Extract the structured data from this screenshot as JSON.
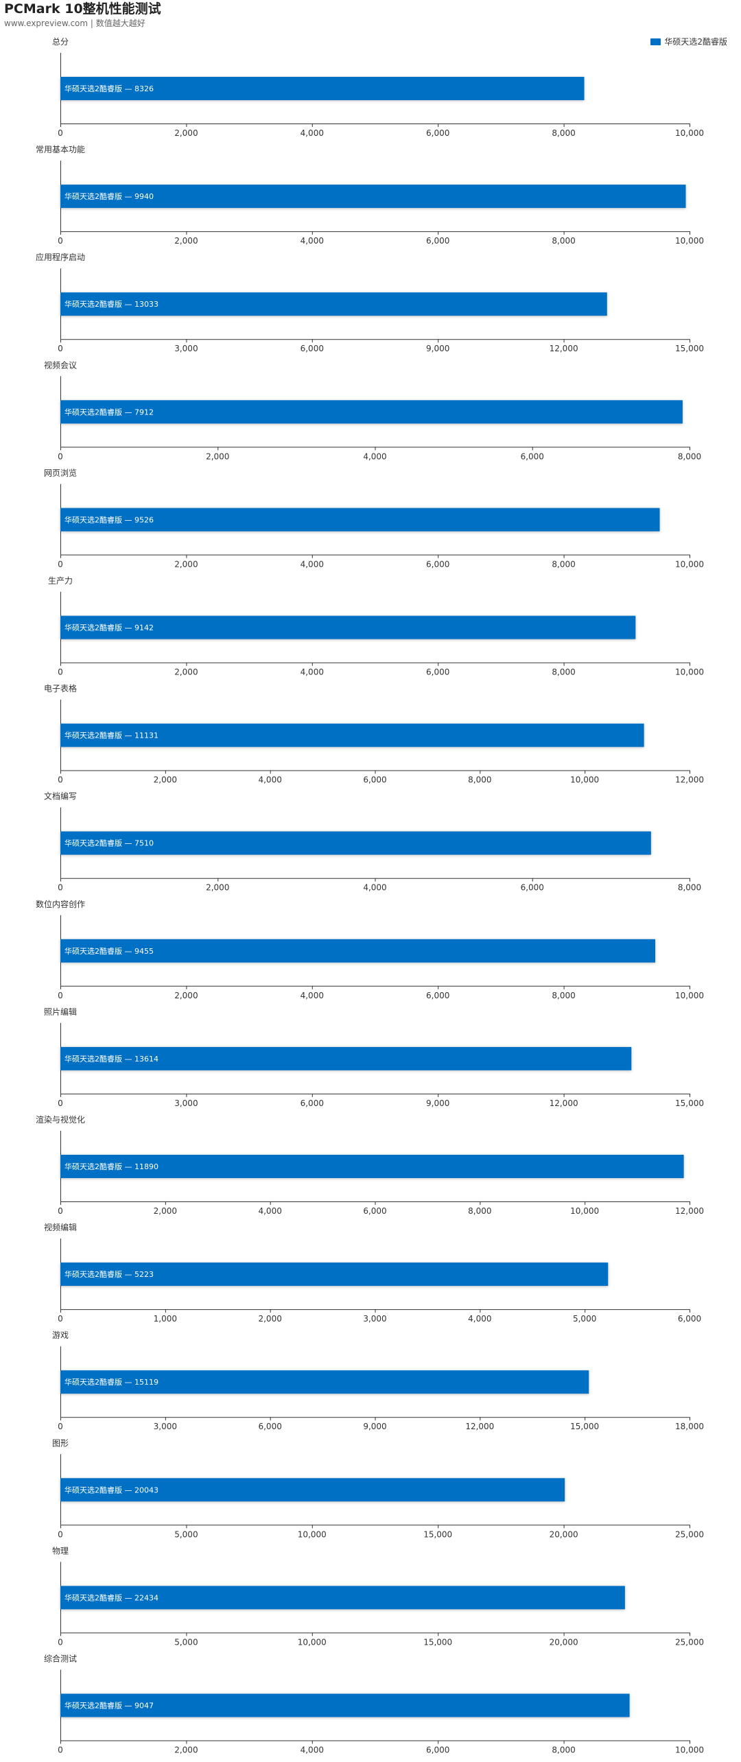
{
  "header": {
    "title": "PCMark 10整机性能测试",
    "subtitle": "www.expreview.com | 数值越大越好"
  },
  "legend": {
    "label": "华硕天选2酷睿版",
    "color": "#0070C5"
  },
  "chart_data": [
    {
      "type": "bar",
      "orientation": "horizontal",
      "title": "总分",
      "series": [
        {
          "name": "华硕天选2酷睿版",
          "values": [
            8326
          ]
        }
      ],
      "xlim": [
        0,
        10000
      ],
      "xticks": [
        0,
        2000,
        4000,
        6000,
        8000,
        10000
      ],
      "tick_labels": [
        "0",
        "2,000",
        "4,000",
        "6,000",
        "8,000",
        "10,000"
      ]
    },
    {
      "type": "bar",
      "orientation": "horizontal",
      "title": "常用基本功能",
      "series": [
        {
          "name": "华硕天选2酷睿版",
          "values": [
            9940
          ]
        }
      ],
      "xlim": [
        0,
        10000
      ],
      "xticks": [
        0,
        2000,
        4000,
        6000,
        8000,
        10000
      ],
      "tick_labels": [
        "0",
        "2,000",
        "4,000",
        "6,000",
        "8,000",
        "10,000"
      ]
    },
    {
      "type": "bar",
      "orientation": "horizontal",
      "title": "应用程序启动",
      "series": [
        {
          "name": "华硕天选2酷睿版",
          "values": [
            13033
          ]
        }
      ],
      "xlim": [
        0,
        15000
      ],
      "xticks": [
        0,
        3000,
        6000,
        9000,
        12000,
        15000
      ],
      "tick_labels": [
        "0",
        "3,000",
        "6,000",
        "9,000",
        "12,000",
        "15,000"
      ]
    },
    {
      "type": "bar",
      "orientation": "horizontal",
      "title": "视频会议",
      "series": [
        {
          "name": "华硕天选2酷睿版",
          "values": [
            7912
          ]
        }
      ],
      "xlim": [
        0,
        8000
      ],
      "xticks": [
        0,
        2000,
        4000,
        6000,
        8000
      ],
      "tick_labels": [
        "0",
        "2,000",
        "4,000",
        "6,000",
        "8,000"
      ]
    },
    {
      "type": "bar",
      "orientation": "horizontal",
      "title": "网页浏览",
      "series": [
        {
          "name": "华硕天选2酷睿版",
          "values": [
            9526
          ]
        }
      ],
      "xlim": [
        0,
        10000
      ],
      "xticks": [
        0,
        2000,
        4000,
        6000,
        8000,
        10000
      ],
      "tick_labels": [
        "0",
        "2,000",
        "4,000",
        "6,000",
        "8,000",
        "10,000"
      ]
    },
    {
      "type": "bar",
      "orientation": "horizontal",
      "title": "生产力",
      "series": [
        {
          "name": "华硕天选2酷睿版",
          "values": [
            9142
          ]
        }
      ],
      "xlim": [
        0,
        10000
      ],
      "xticks": [
        0,
        2000,
        4000,
        6000,
        8000,
        10000
      ],
      "tick_labels": [
        "0",
        "2,000",
        "4,000",
        "6,000",
        "8,000",
        "10,000"
      ]
    },
    {
      "type": "bar",
      "orientation": "horizontal",
      "title": "电子表格",
      "series": [
        {
          "name": "华硕天选2酷睿版",
          "values": [
            11131
          ]
        }
      ],
      "xlim": [
        0,
        12000
      ],
      "xticks": [
        0,
        2000,
        4000,
        6000,
        8000,
        10000,
        12000
      ],
      "tick_labels": [
        "0",
        "2,000",
        "4,000",
        "6,000",
        "8,000",
        "10,000",
        "12,000"
      ]
    },
    {
      "type": "bar",
      "orientation": "horizontal",
      "title": "文档编写",
      "series": [
        {
          "name": "华硕天选2酷睿版",
          "values": [
            7510
          ]
        }
      ],
      "xlim": [
        0,
        8000
      ],
      "xticks": [
        0,
        2000,
        4000,
        6000,
        8000
      ],
      "tick_labels": [
        "0",
        "2,000",
        "4,000",
        "6,000",
        "8,000"
      ]
    },
    {
      "type": "bar",
      "orientation": "horizontal",
      "title": "数位内容创作",
      "series": [
        {
          "name": "华硕天选2酷睿版",
          "values": [
            9455
          ]
        }
      ],
      "xlim": [
        0,
        10000
      ],
      "xticks": [
        0,
        2000,
        4000,
        6000,
        8000,
        10000
      ],
      "tick_labels": [
        "0",
        "2,000",
        "4,000",
        "6,000",
        "8,000",
        "10,000"
      ]
    },
    {
      "type": "bar",
      "orientation": "horizontal",
      "title": "照片编辑",
      "series": [
        {
          "name": "华硕天选2酷睿版",
          "values": [
            13614
          ]
        }
      ],
      "xlim": [
        0,
        15000
      ],
      "xticks": [
        0,
        3000,
        6000,
        9000,
        12000,
        15000
      ],
      "tick_labels": [
        "0",
        "3,000",
        "6,000",
        "9,000",
        "12,000",
        "15,000"
      ]
    },
    {
      "type": "bar",
      "orientation": "horizontal",
      "title": "渲染与视觉化",
      "series": [
        {
          "name": "华硕天选2酷睿版",
          "values": [
            11890
          ]
        }
      ],
      "xlim": [
        0,
        12000
      ],
      "xticks": [
        0,
        2000,
        4000,
        6000,
        8000,
        10000,
        12000
      ],
      "tick_labels": [
        "0",
        "2,000",
        "4,000",
        "6,000",
        "8,000",
        "10,000",
        "12,000"
      ]
    },
    {
      "type": "bar",
      "orientation": "horizontal",
      "title": "视频编辑",
      "series": [
        {
          "name": "华硕天选2酷睿版",
          "values": [
            5223
          ]
        }
      ],
      "xlim": [
        0,
        6000
      ],
      "xticks": [
        0,
        1000,
        2000,
        3000,
        4000,
        5000,
        6000
      ],
      "tick_labels": [
        "0",
        "1,000",
        "2,000",
        "3,000",
        "4,000",
        "5,000",
        "6,000"
      ]
    },
    {
      "type": "bar",
      "orientation": "horizontal",
      "title": "游戏",
      "series": [
        {
          "name": "华硕天选2酷睿版",
          "values": [
            15119
          ]
        }
      ],
      "xlim": [
        0,
        18000
      ],
      "xticks": [
        0,
        3000,
        6000,
        9000,
        12000,
        15000,
        18000
      ],
      "tick_labels": [
        "0",
        "3,000",
        "6,000",
        "9,000",
        "12,000",
        "15,000",
        "18,000"
      ]
    },
    {
      "type": "bar",
      "orientation": "horizontal",
      "title": "图形",
      "series": [
        {
          "name": "华硕天选2酷睿版",
          "values": [
            20043
          ]
        }
      ],
      "xlim": [
        0,
        25000
      ],
      "xticks": [
        0,
        5000,
        10000,
        15000,
        20000,
        25000
      ],
      "tick_labels": [
        "0",
        "5,000",
        "10,000",
        "15,000",
        "20,000",
        "25,000"
      ]
    },
    {
      "type": "bar",
      "orientation": "horizontal",
      "title": "物理",
      "series": [
        {
          "name": "华硕天选2酷睿版",
          "values": [
            22434
          ]
        }
      ],
      "xlim": [
        0,
        25000
      ],
      "xticks": [
        0,
        5000,
        10000,
        15000,
        20000,
        25000
      ],
      "tick_labels": [
        "0",
        "5,000",
        "10,000",
        "15,000",
        "20,000",
        "25,000"
      ]
    },
    {
      "type": "bar",
      "orientation": "horizontal",
      "title": "综合测试",
      "series": [
        {
          "name": "华硕天选2酷睿版",
          "values": [
            9047
          ]
        }
      ],
      "xlim": [
        0,
        10000
      ],
      "xticks": [
        0,
        2000,
        4000,
        6000,
        8000,
        10000
      ],
      "tick_labels": [
        "0",
        "2,000",
        "4,000",
        "6,000",
        "8,000",
        "10,000"
      ]
    }
  ]
}
